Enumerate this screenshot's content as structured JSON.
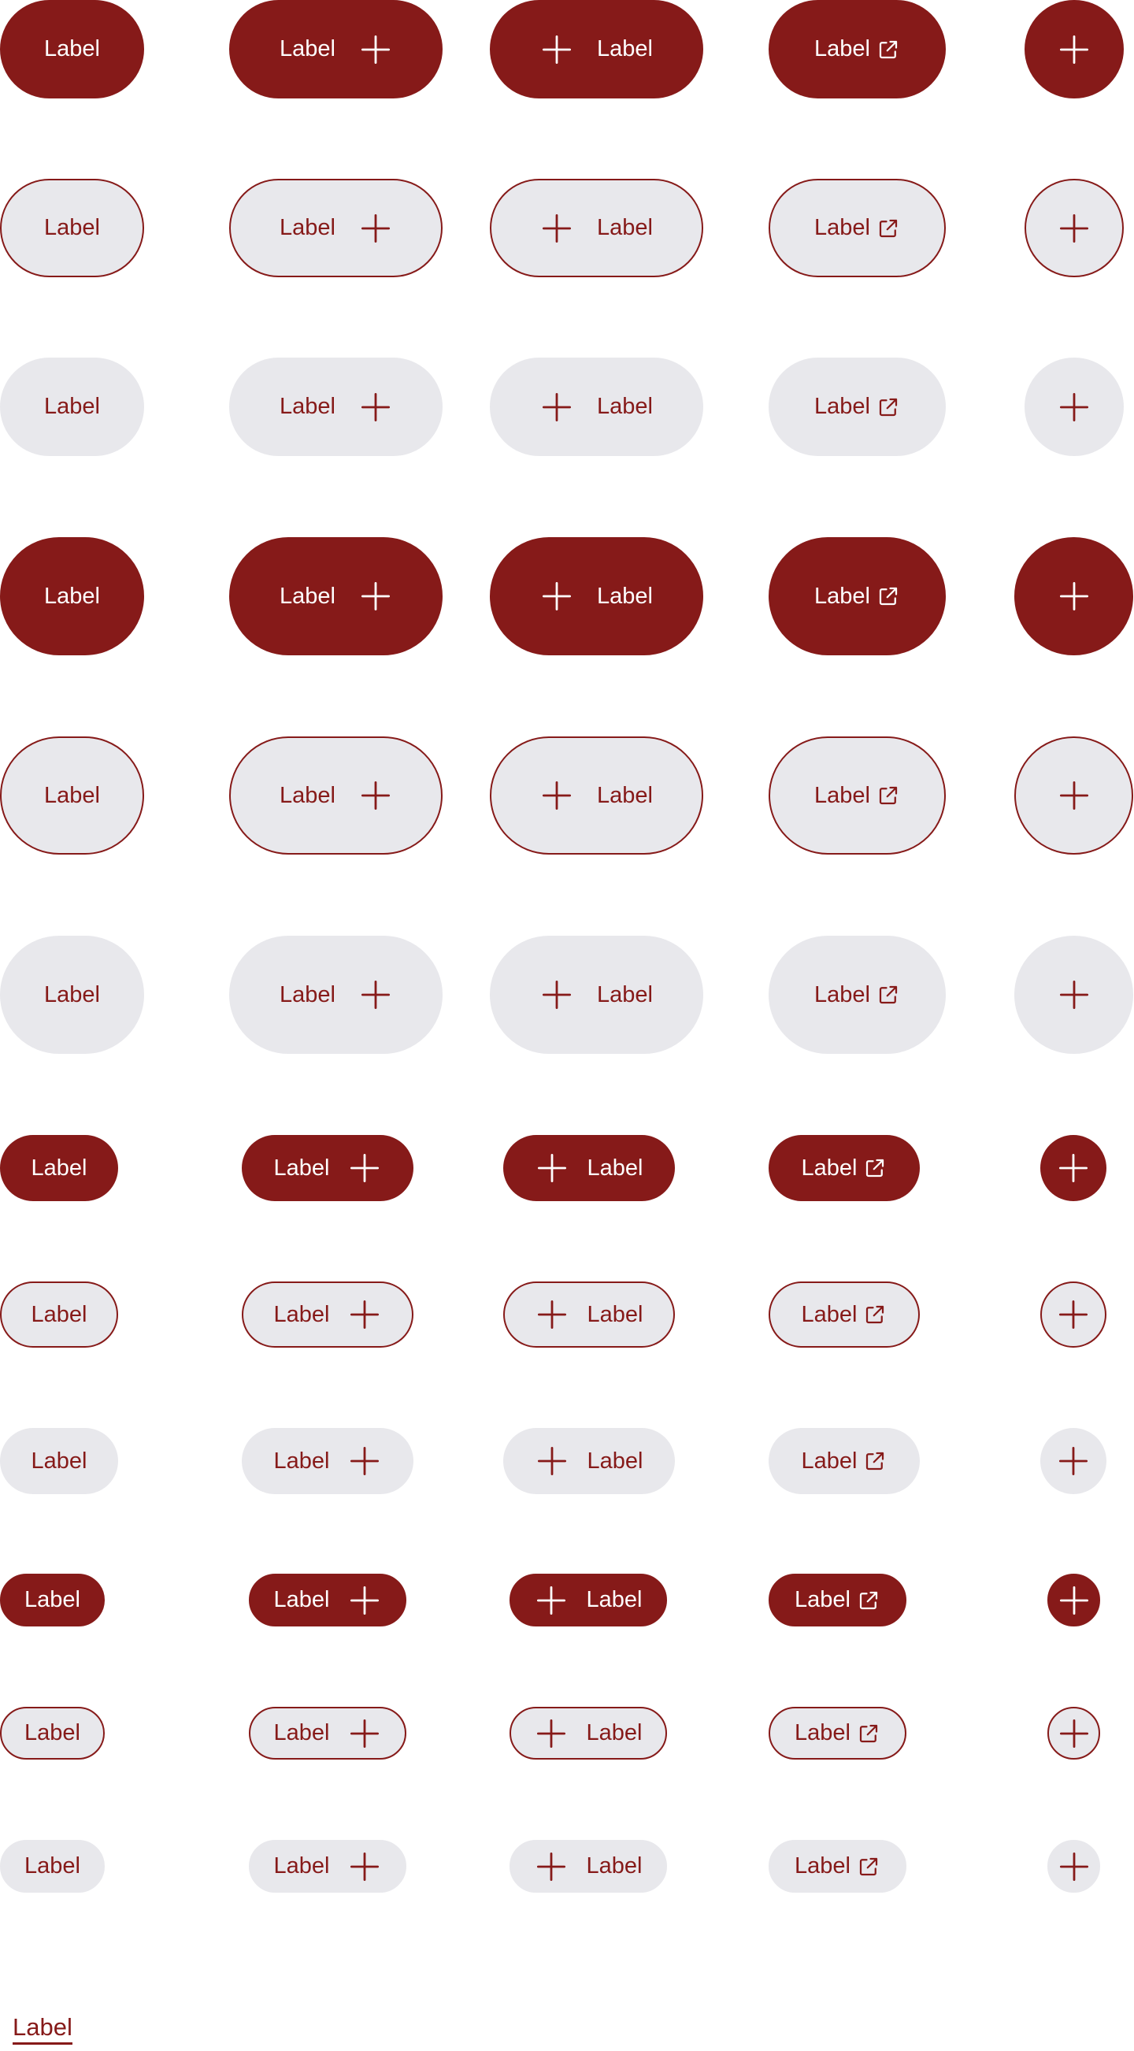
{
  "button_label": "Label",
  "link_label": "Label",
  "icons": {
    "plus": "plus-icon",
    "external": "external-link-icon"
  },
  "colors": {
    "primary": "#861a19",
    "surface": "#e8e8ec",
    "on_primary": "#ffffff",
    "page": "#ffffff"
  },
  "variants": [
    "primary",
    "secondary",
    "tertiary"
  ],
  "sizes": [
    "extra-large",
    "large",
    "medium",
    "small"
  ],
  "layouts": [
    "text-only",
    "text-with-trailing-plus-icon",
    "text-with-leading-plus-icon",
    "text-with-external-link-icon",
    "icon-only"
  ]
}
